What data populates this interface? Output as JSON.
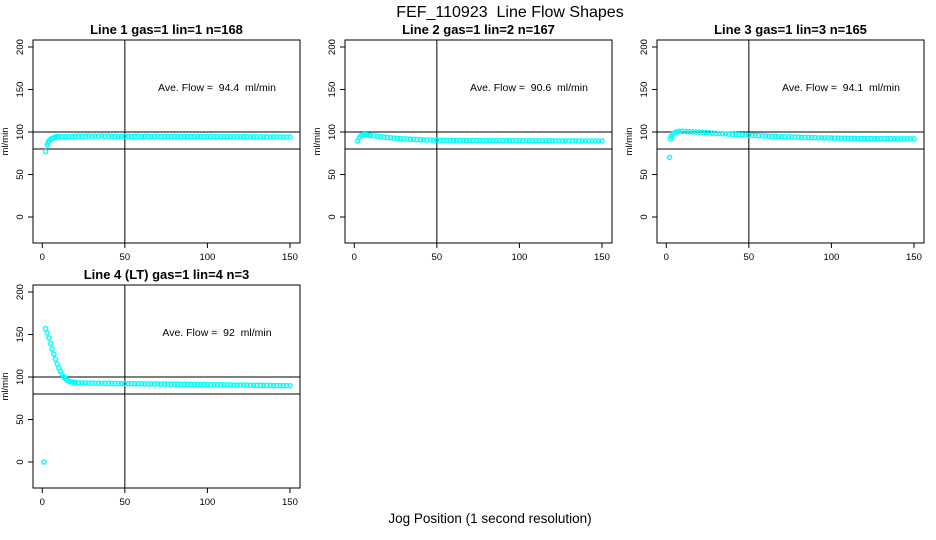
{
  "figure": {
    "title": "FEF_110923  Line Flow Shapes",
    "xlabel": "Jog Position (1 second resolution)",
    "background": "#ffffff",
    "axis_color": "#000000",
    "point_color": "#00ffff",
    "marker": "open-circle"
  },
  "chart_data": [
    {
      "type": "scatter",
      "title": "Line 1 gas=1 lin=1 n=168",
      "ylabel": "ml/min",
      "ave_flow": 94.4,
      "ave_label": "Ave. Flow =  94.4  ml/min",
      "x_ticks": [
        0,
        50,
        100,
        150
      ],
      "y_ticks": [
        0,
        50,
        100,
        150,
        200
      ],
      "xlim": [
        -6,
        156
      ],
      "ylim": [
        -30,
        208
      ],
      "h_ref_lines": [
        80,
        100
      ],
      "v_ref_line": 50,
      "grid": false,
      "points": [
        [
          2,
          77
        ],
        [
          3,
          84.5
        ],
        [
          3.5,
          87
        ],
        [
          4,
          89
        ],
        [
          5,
          91
        ],
        [
          6,
          92.5
        ],
        [
          7,
          93.4
        ],
        [
          8,
          94
        ],
        [
          9,
          94.3
        ],
        [
          10,
          94.5
        ],
        [
          12,
          94.6
        ],
        [
          14,
          94.5
        ],
        [
          16,
          94.7
        ],
        [
          18,
          94.9
        ],
        [
          20,
          95
        ],
        [
          22,
          95.2
        ],
        [
          24,
          94.9
        ],
        [
          26,
          95.1
        ],
        [
          28,
          95.3
        ],
        [
          30,
          95
        ],
        [
          32,
          95.2
        ],
        [
          34,
          94.9
        ],
        [
          36,
          95.4
        ],
        [
          38,
          95.1
        ],
        [
          40,
          95.2
        ],
        [
          42,
          94.9
        ],
        [
          44,
          95.1
        ],
        [
          46,
          94.8
        ],
        [
          48,
          95
        ],
        [
          50,
          94.9
        ],
        [
          52,
          95.1
        ],
        [
          54,
          94.8
        ],
        [
          56,
          94.9
        ],
        [
          58,
          95.1
        ],
        [
          60,
          94.8
        ],
        [
          62,
          95
        ],
        [
          64,
          94.9
        ],
        [
          66,
          94.7
        ],
        [
          68,
          94.9
        ],
        [
          70,
          95
        ],
        [
          72,
          94.8
        ],
        [
          74,
          94.9
        ],
        [
          76,
          94.7
        ],
        [
          78,
          94.8
        ],
        [
          80,
          95
        ],
        [
          82,
          94.8
        ],
        [
          84,
          94.6
        ],
        [
          86,
          94.9
        ],
        [
          88,
          94.7
        ],
        [
          90,
          94.8
        ],
        [
          92,
          94.6
        ],
        [
          94,
          94.8
        ],
        [
          96,
          94.7
        ],
        [
          98,
          94.5
        ],
        [
          100,
          94.7
        ],
        [
          102,
          94.8
        ],
        [
          104,
          94.6
        ],
        [
          106,
          94.5
        ],
        [
          108,
          94.7
        ],
        [
          110,
          94.6
        ],
        [
          112,
          94.4
        ],
        [
          114,
          94.6
        ],
        [
          116,
          94.5
        ],
        [
          118,
          94.3
        ],
        [
          120,
          94.5
        ],
        [
          122,
          94.6
        ],
        [
          124,
          94.4
        ],
        [
          126,
          94.3
        ],
        [
          128,
          94.5
        ],
        [
          130,
          94.4
        ],
        [
          132,
          94.2
        ],
        [
          134,
          94.4
        ],
        [
          136,
          94.3
        ],
        [
          138,
          94.1
        ],
        [
          140,
          94.3
        ],
        [
          142,
          94.2
        ],
        [
          144,
          94
        ],
        [
          146,
          94.2
        ],
        [
          148,
          94.1
        ],
        [
          150,
          94.2
        ]
      ]
    },
    {
      "type": "scatter",
      "title": "Line 2 gas=1 lin=2 n=167",
      "ylabel": "ml/min",
      "ave_flow": 90.6,
      "ave_label": "Ave. Flow =  90.6  ml/min",
      "x_ticks": [
        0,
        50,
        100,
        150
      ],
      "y_ticks": [
        0,
        50,
        100,
        150,
        200
      ],
      "xlim": [
        -6,
        156
      ],
      "ylim": [
        -30,
        208
      ],
      "h_ref_lines": [
        80,
        100
      ],
      "v_ref_line": 50,
      "grid": false,
      "points": [
        [
          2,
          89.5
        ],
        [
          3,
          93
        ],
        [
          4,
          95.5
        ],
        [
          5,
          96.5
        ],
        [
          6,
          97
        ],
        [
          7,
          96.8
        ],
        [
          8,
          96.5
        ],
        [
          9,
          96.2
        ],
        [
          10,
          96
        ],
        [
          12,
          95.5
        ],
        [
          14,
          95
        ],
        [
          16,
          94.5
        ],
        [
          18,
          94
        ],
        [
          20,
          93.6
        ],
        [
          22,
          93.2
        ],
        [
          24,
          92.9
        ],
        [
          26,
          92.6
        ],
        [
          28,
          92.3
        ],
        [
          30,
          92
        ],
        [
          32,
          91.8
        ],
        [
          34,
          91.5
        ],
        [
          36,
          91.3
        ],
        [
          38,
          91.1
        ],
        [
          40,
          90.9
        ],
        [
          42,
          90.8
        ],
        [
          44,
          90.6
        ],
        [
          46,
          90.5
        ],
        [
          48,
          90.4
        ],
        [
          50,
          90.4
        ],
        [
          52,
          90.3
        ],
        [
          54,
          90.3
        ],
        [
          56,
          90.2
        ],
        [
          58,
          90.2
        ],
        [
          60,
          90.1
        ],
        [
          62,
          90.1
        ],
        [
          64,
          90.1
        ],
        [
          66,
          90
        ],
        [
          68,
          90
        ],
        [
          70,
          90
        ],
        [
          72,
          90
        ],
        [
          74,
          89.9
        ],
        [
          76,
          89.9
        ],
        [
          78,
          89.9
        ],
        [
          80,
          89.9
        ],
        [
          82,
          89.9
        ],
        [
          84,
          89.8
        ],
        [
          86,
          89.8
        ],
        [
          88,
          89.8
        ],
        [
          90,
          89.8
        ],
        [
          92,
          89.8
        ],
        [
          94,
          89.8
        ],
        [
          96,
          89.7
        ],
        [
          98,
          89.7
        ],
        [
          100,
          89.7
        ],
        [
          102,
          89.7
        ],
        [
          104,
          89.7
        ],
        [
          106,
          89.7
        ],
        [
          108,
          89.6
        ],
        [
          110,
          89.6
        ],
        [
          112,
          89.6
        ],
        [
          114,
          89.6
        ],
        [
          116,
          89.6
        ],
        [
          118,
          89.6
        ],
        [
          120,
          89.6
        ],
        [
          122,
          89.5
        ],
        [
          124,
          89.5
        ],
        [
          126,
          89.5
        ],
        [
          128,
          89.5
        ],
        [
          130,
          89.5
        ],
        [
          132,
          89.5
        ],
        [
          134,
          89.5
        ],
        [
          136,
          89.5
        ],
        [
          138,
          89.4
        ],
        [
          140,
          89.4
        ],
        [
          142,
          89.4
        ],
        [
          144,
          89.4
        ],
        [
          146,
          89.4
        ],
        [
          148,
          89.4
        ],
        [
          150,
          89.4
        ]
      ]
    },
    {
      "type": "scatter",
      "title": "Line 3 gas=1 lin=3 n=165",
      "ylabel": "ml/min",
      "ave_flow": 94.1,
      "ave_label": "Ave. Flow =  94.1  ml/min",
      "x_ticks": [
        0,
        50,
        100,
        150
      ],
      "y_ticks": [
        0,
        50,
        100,
        150,
        200
      ],
      "xlim": [
        -6,
        156
      ],
      "ylim": [
        -30,
        208
      ],
      "h_ref_lines": [
        80,
        100
      ],
      "v_ref_line": 50,
      "grid": false,
      "points": [
        [
          2,
          70
        ],
        [
          2.5,
          92
        ],
        [
          3,
          95
        ],
        [
          4,
          97.5
        ],
        [
          5,
          99
        ],
        [
          6,
          100
        ],
        [
          7,
          100.5
        ],
        [
          8,
          100.7
        ],
        [
          10,
          100.8
        ],
        [
          12,
          100.6
        ],
        [
          14,
          100.4
        ],
        [
          16,
          100.2
        ],
        [
          18,
          100
        ],
        [
          20,
          99.8
        ],
        [
          22,
          99.5
        ],
        [
          24,
          99.2
        ],
        [
          26,
          99
        ],
        [
          28,
          98.7
        ],
        [
          30,
          98.5
        ],
        [
          32,
          98.2
        ],
        [
          34,
          98
        ],
        [
          36,
          97.8
        ],
        [
          38,
          97.5
        ],
        [
          40,
          97.3
        ],
        [
          42,
          97.1
        ],
        [
          44,
          96.9
        ],
        [
          46,
          96.7
        ],
        [
          48,
          96.5
        ],
        [
          50,
          96.3
        ],
        [
          52,
          96.1
        ],
        [
          54,
          95.9
        ],
        [
          56,
          95.7
        ],
        [
          58,
          95.5
        ],
        [
          60,
          95.4
        ],
        [
          62,
          95.2
        ],
        [
          64,
          95
        ],
        [
          66,
          94.9
        ],
        [
          68,
          94.7
        ],
        [
          70,
          94.6
        ],
        [
          72,
          94.4
        ],
        [
          74,
          94.3
        ],
        [
          76,
          94.1
        ],
        [
          78,
          94
        ],
        [
          80,
          93.9
        ],
        [
          82,
          93.8
        ],
        [
          84,
          93.6
        ],
        [
          86,
          93.5
        ],
        [
          88,
          93.4
        ],
        [
          90,
          93.3
        ],
        [
          92,
          93.2
        ],
        [
          94,
          93.1
        ],
        [
          96,
          93.1
        ],
        [
          98,
          93
        ],
        [
          100,
          92.9
        ],
        [
          102,
          92.9
        ],
        [
          104,
          92.8
        ],
        [
          106,
          92.7
        ],
        [
          108,
          92.7
        ],
        [
          110,
          92.6
        ],
        [
          112,
          92.6
        ],
        [
          114,
          92.5
        ],
        [
          116,
          92.5
        ],
        [
          118,
          92.4
        ],
        [
          120,
          92.4
        ],
        [
          122,
          92.3
        ],
        [
          124,
          92.3
        ],
        [
          126,
          92.3
        ],
        [
          128,
          92.2
        ],
        [
          130,
          92.2
        ],
        [
          132,
          92.2
        ],
        [
          134,
          92.1
        ],
        [
          136,
          92.1
        ],
        [
          138,
          92.1
        ],
        [
          140,
          92
        ],
        [
          142,
          92
        ],
        [
          144,
          92
        ],
        [
          146,
          92
        ],
        [
          148,
          92
        ],
        [
          150,
          92
        ]
      ]
    },
    {
      "type": "scatter",
      "title": "Line 4 (LT) gas=1 lin=4 n=3",
      "ylabel": "ml/min",
      "ave_flow": 92,
      "ave_label": "Ave. Flow =  92  ml/min",
      "x_ticks": [
        0,
        50,
        100,
        150
      ],
      "y_ticks": [
        0,
        50,
        100,
        150,
        200
      ],
      "xlim": [
        -6,
        156
      ],
      "ylim": [
        -30,
        208
      ],
      "h_ref_lines": [
        80,
        100
      ],
      "v_ref_line": 50,
      "grid": false,
      "points": [
        [
          1,
          0
        ],
        [
          2,
          157
        ],
        [
          3,
          152
        ],
        [
          4,
          146
        ],
        [
          5,
          139.5
        ],
        [
          6,
          133
        ],
        [
          7,
          127
        ],
        [
          8,
          121
        ],
        [
          9,
          115.5
        ],
        [
          10,
          110.5
        ],
        [
          11,
          106.5
        ],
        [
          12,
          103
        ],
        [
          13,
          100.2
        ],
        [
          14,
          98
        ],
        [
          15,
          96.3
        ],
        [
          16,
          95.2
        ],
        [
          17,
          94.5
        ],
        [
          18,
          94
        ],
        [
          19,
          93.7
        ],
        [
          20,
          93.5
        ],
        [
          22,
          93.2
        ],
        [
          24,
          93
        ],
        [
          26,
          92.9
        ],
        [
          28,
          92.8
        ],
        [
          30,
          92.8
        ],
        [
          32,
          92.7
        ],
        [
          34,
          92.7
        ],
        [
          36,
          92.6
        ],
        [
          38,
          92.6
        ],
        [
          40,
          92.5
        ],
        [
          42,
          92.5
        ],
        [
          44,
          92.4
        ],
        [
          46,
          92.4
        ],
        [
          48,
          92.3
        ],
        [
          50,
          92.3
        ],
        [
          52,
          92.2
        ],
        [
          54,
          92.2
        ],
        [
          56,
          92.1
        ],
        [
          58,
          92.1
        ],
        [
          60,
          92
        ],
        [
          62,
          92
        ],
        [
          64,
          91.9
        ],
        [
          66,
          91.9
        ],
        [
          68,
          91.8
        ],
        [
          70,
          91.8
        ],
        [
          72,
          91.7
        ],
        [
          74,
          91.7
        ],
        [
          76,
          91.6
        ],
        [
          78,
          91.6
        ],
        [
          80,
          91.5
        ],
        [
          82,
          91.5
        ],
        [
          84,
          91.4
        ],
        [
          86,
          91.4
        ],
        [
          88,
          91.3
        ],
        [
          90,
          91.3
        ],
        [
          92,
          91.2
        ],
        [
          94,
          91.2
        ],
        [
          96,
          91.1
        ],
        [
          98,
          91.1
        ],
        [
          100,
          91
        ],
        [
          102,
          91
        ],
        [
          104,
          90.9
        ],
        [
          106,
          90.9
        ],
        [
          108,
          90.8
        ],
        [
          110,
          90.8
        ],
        [
          112,
          90.7
        ],
        [
          114,
          90.7
        ],
        [
          116,
          90.6
        ],
        [
          118,
          90.6
        ],
        [
          120,
          90.5
        ],
        [
          122,
          90.5
        ],
        [
          124,
          90.4
        ],
        [
          126,
          90.4
        ],
        [
          128,
          90.3
        ],
        [
          130,
          90.3
        ],
        [
          132,
          90.2
        ],
        [
          134,
          90.2
        ],
        [
          136,
          90.1
        ],
        [
          138,
          90.1
        ],
        [
          140,
          90
        ],
        [
          142,
          90
        ],
        [
          144,
          89.9
        ],
        [
          146,
          89.9
        ],
        [
          148,
          89.8
        ],
        [
          150,
          89.8
        ]
      ]
    }
  ]
}
